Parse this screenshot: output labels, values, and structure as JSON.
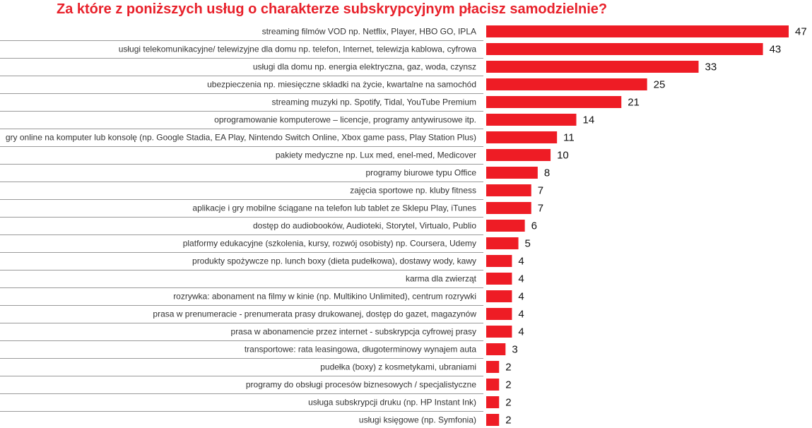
{
  "chart_data": {
    "type": "bar",
    "orientation": "horizontal",
    "title": "Za które z poniższych usług o charakterze subskrypcyjnym płacisz samodzielnie?",
    "categories": [
      "streaming filmów VOD np. Netflix, Player, HBO GO, IPLA",
      "usługi telekomunikacyjne/  telewizyjne  dla domu  np. telefon, Internet, telewizja kablowa, cyfrowa",
      "usługi dla domu np. energia elektryczna, gaz, woda, czynsz",
      "ubezpieczenia np. miesięczne składki na życie, kwartalne na samochód",
      "streaming muzyki np. Spotify, Tidal, YouTube Premium",
      "oprogramowanie komputerowe – licencje, programy antywirusowe itp.",
      "gry online na komputer lub konsolę (np. Google Stadia, EA Play, Nintendo Switch Online, Xbox game pass, Play Station Plus)",
      "pakiety medyczne np. Lux med, enel-med, Medicover",
      "programy biurowe typu Office",
      "zajęcia sportowe np. kluby fitness",
      "aplikacje i gry mobilne ściągane na telefon lub tablet ze Sklepu Play, iTunes",
      "dostęp do audiobooków, Audioteki, Storytel, Virtualo, Publio",
      "platformy edukacyjne (szkolenia, kursy, rozwój osobisty) np. Coursera, Udemy",
      "produkty spożywcze np. lunch boxy (dieta pudełkowa), dostawy wody, kawy",
      "karma dla zwierząt",
      "rozrywka: abonament na filmy w kinie (np. Multikino Unlimited), centrum rozrywki",
      "prasa w prenumeracie - prenumerata prasy drukowanej, dostęp do gazet, magazynów",
      "prasa w abonamencie przez internet - subskrypcja cyfrowej prasy",
      "transportowe: rata leasingowa, długoterminowy wynajem auta",
      "pudełka (boxy) z kosmetykami, ubraniami",
      "programy do obsługi procesów biznesowych / specjalistyczne",
      "usługa subskrypcji druku (np. HP Instant Ink)",
      "usługi księgowe (np. Symfonia)"
    ],
    "values": [
      47,
      43,
      33,
      25,
      21,
      14,
      11,
      10,
      8,
      7,
      7,
      6,
      5,
      4,
      4,
      4,
      4,
      4,
      3,
      2,
      2,
      2,
      2
    ],
    "xlim": [
      0,
      47
    ],
    "grid": false,
    "legend": "none",
    "bar_color": "#ee1c25"
  }
}
